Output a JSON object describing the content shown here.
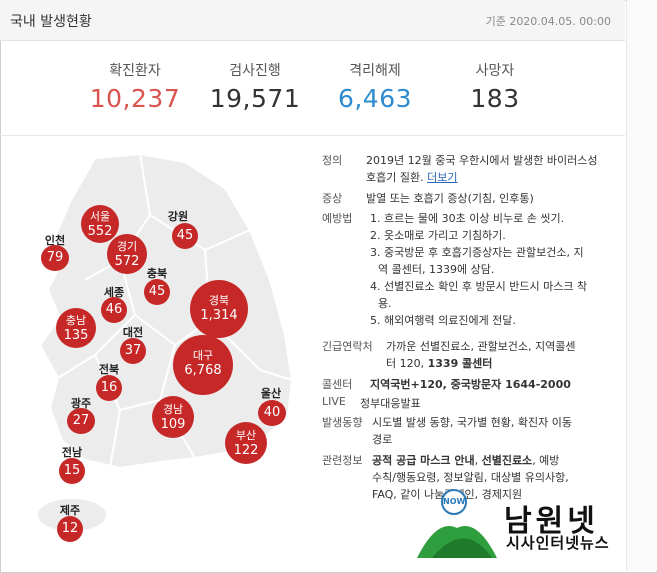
{
  "header": {
    "title": "국내 발생현황",
    "date": "기준 2020.04.05. 00:00"
  },
  "stats": [
    {
      "label": "확진환자",
      "value": "10,237",
      "color": "#d9534f"
    },
    {
      "label": "검사진행",
      "value": "19,571",
      "color": "#333333"
    },
    {
      "label": "격리해제",
      "value": "6,463",
      "color": "#2e8bd0"
    },
    {
      "label": "사망자",
      "value": "183",
      "color": "#333333"
    }
  ],
  "regions": {
    "seoul": {
      "name": "서울",
      "value": "552"
    },
    "gangwon": {
      "name": "강원",
      "value": "45"
    },
    "incheon": {
      "name": "인천",
      "value": "79"
    },
    "gyeonggi": {
      "name": "경기",
      "value": "572"
    },
    "chungbuk": {
      "name": "충북",
      "value": "45"
    },
    "sejong": {
      "name": "세종",
      "value": "46"
    },
    "gyeongbuk": {
      "name": "경북",
      "value": "1,314"
    },
    "chungnam": {
      "name": "충남",
      "value": "135"
    },
    "daejeon": {
      "name": "대전",
      "value": "37"
    },
    "daegu": {
      "name": "대구",
      "value": "6,768"
    },
    "jeonbuk": {
      "name": "전북",
      "value": "16"
    },
    "ulsan": {
      "name": "울산",
      "value": "40"
    },
    "gwangju": {
      "name": "광주",
      "value": "27"
    },
    "gyeongnam": {
      "name": "경남",
      "value": "109"
    },
    "busan": {
      "name": "부산",
      "value": "122"
    },
    "jeonnam": {
      "name": "전남",
      "value": "15"
    },
    "jeju": {
      "name": "제주",
      "value": "12"
    }
  },
  "info": {
    "definition_key": "정의",
    "definition_l1": "2019년 12월 중국 우한시에서 발생한 바이러스성",
    "definition_l2": "호흡기 질환.",
    "definition_link": "더보기",
    "symptom_key": "증상",
    "symptom": "발열 또는 호흡기 증상(기침, 인후통)",
    "prevention_key": "예방법",
    "prevention": [
      "1. 흐르는 물에 30초 이상 비누로 손 씻기.",
      "2. 옷소매로 가리고 기침하기.",
      "3. 중국방문 후 호흡기증상자는 관할보건소, 지",
      "역 콜센터, 1339에 상담.",
      "4. 선별진료소 확인 후 방문시 반드시 마스크 착",
      "용.",
      "5. 해외여행력 의료진에게 전달."
    ],
    "emergency_key": "긴급연락처",
    "emergency_l1": "가까운 선별진료소, 관할보건소, 지역콜센",
    "emergency_l2a": "터 120, ",
    "emergency_l2b": "1339 콜센터",
    "callcenter_key": "콜센터",
    "callcenter": "지역국번+120, 중국방문자 1644-2000",
    "live_key": "LIVE",
    "live": "정부대응발표",
    "trend_key": "발생동향",
    "trend_l1": "시도별 발생 동향, 국가별 현황, 확진자 이동",
    "trend_l2": "경로",
    "related_key": "관련정보",
    "related_l1a": "공적 공급 마스크 안내",
    "related_l1b": ", ",
    "related_l1c": "선별진료소",
    "related_l1d": ", 예방",
    "related_l2": "수칙/행동요령, 정보알림, 대상별 유의사항,",
    "related_l3": "FAQ, 같이 나눔캠페인, 경제지원"
  },
  "logo": {
    "badge": "NOW",
    "name": "남원넷",
    "subtitle": "시사인터넷뉴스"
  }
}
